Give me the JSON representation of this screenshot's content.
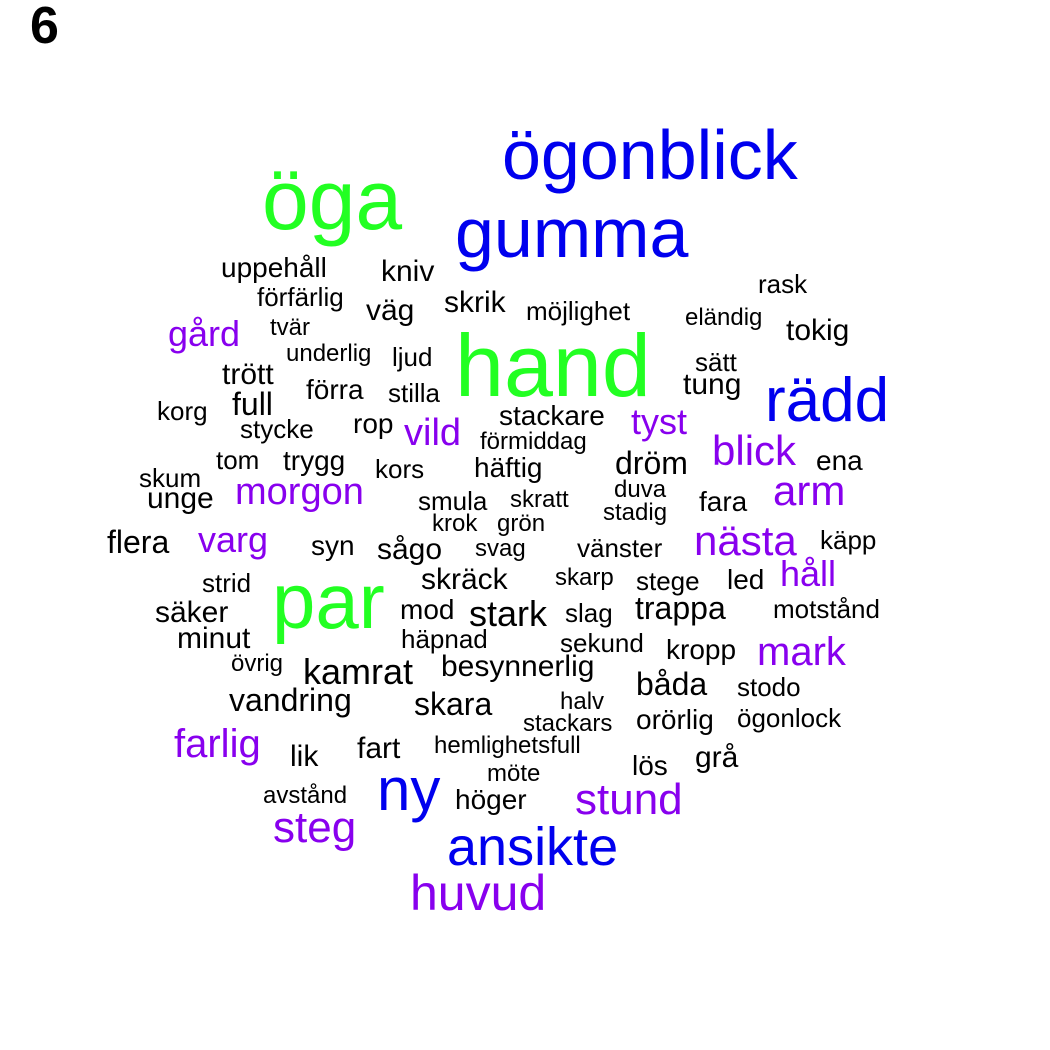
{
  "panel_label": "6",
  "palette": {
    "green": "#22ff22",
    "blue": "#0000ee",
    "purple": "#8800ee",
    "black": "#000000"
  },
  "words": [
    {
      "text": "öga",
      "color": "green"
    },
    {
      "text": "ögonblick",
      "color": "blue"
    },
    {
      "text": "gumma",
      "color": "blue"
    },
    {
      "text": "hand",
      "color": "green"
    },
    {
      "text": "rädd",
      "color": "blue"
    },
    {
      "text": "par",
      "color": "green"
    },
    {
      "text": "ny",
      "color": "blue"
    },
    {
      "text": "ansikte",
      "color": "blue"
    },
    {
      "text": "huvud",
      "color": "purple"
    },
    {
      "text": "steg",
      "color": "purple"
    },
    {
      "text": "stund",
      "color": "purple"
    },
    {
      "text": "morgon",
      "color": "purple"
    },
    {
      "text": "blick",
      "color": "purple"
    },
    {
      "text": "arm",
      "color": "purple"
    },
    {
      "text": "nästa",
      "color": "purple"
    },
    {
      "text": "farlig",
      "color": "purple"
    },
    {
      "text": "mark",
      "color": "purple"
    },
    {
      "text": "gård",
      "color": "purple"
    },
    {
      "text": "varg",
      "color": "purple"
    },
    {
      "text": "vild",
      "color": "purple"
    },
    {
      "text": "tyst",
      "color": "purple"
    },
    {
      "text": "håll",
      "color": "purple"
    },
    {
      "text": "kamrat",
      "color": "black"
    },
    {
      "text": "stark",
      "color": "black"
    },
    {
      "text": "vandring",
      "color": "black"
    },
    {
      "text": "skara",
      "color": "black"
    },
    {
      "text": "besynnerlig",
      "color": "black"
    },
    {
      "text": "trappa",
      "color": "black"
    },
    {
      "text": "båda",
      "color": "black"
    },
    {
      "text": "dröm",
      "color": "black"
    },
    {
      "text": "flera",
      "color": "black"
    },
    {
      "text": "unge",
      "color": "black"
    },
    {
      "text": "skräck",
      "color": "black"
    },
    {
      "text": "tung",
      "color": "black"
    },
    {
      "text": "väg",
      "color": "black"
    },
    {
      "text": "tokig",
      "color": "black"
    },
    {
      "text": "grå",
      "color": "black"
    },
    {
      "text": "kniv",
      "color": "black"
    },
    {
      "text": "skrik",
      "color": "black"
    },
    {
      "text": "lik",
      "color": "black"
    },
    {
      "text": "fart",
      "color": "black"
    },
    {
      "text": "höger",
      "color": "black"
    },
    {
      "text": "minut",
      "color": "black"
    },
    {
      "text": "säker",
      "color": "black"
    },
    {
      "text": "full",
      "color": "black"
    },
    {
      "text": "trött",
      "color": "black"
    },
    {
      "text": "häftig",
      "color": "black"
    },
    {
      "text": "stackare",
      "color": "black"
    },
    {
      "text": "uppehåll",
      "color": "black"
    },
    {
      "text": "rop",
      "color": "black"
    },
    {
      "text": "syn",
      "color": "black"
    },
    {
      "text": "sågo",
      "color": "black"
    },
    {
      "text": "orörlig",
      "color": "black"
    },
    {
      "text": "kropp",
      "color": "black"
    },
    {
      "text": "lös",
      "color": "black"
    },
    {
      "text": "led",
      "color": "black"
    },
    {
      "text": "mod",
      "color": "black"
    },
    {
      "text": "vänster",
      "color": "black"
    },
    {
      "text": "fara",
      "color": "black"
    },
    {
      "text": "förra",
      "color": "black"
    },
    {
      "text": "stilla",
      "color": "black"
    },
    {
      "text": "trygg",
      "color": "black"
    },
    {
      "text": "tom",
      "color": "black"
    },
    {
      "text": "kors",
      "color": "black"
    },
    {
      "text": "stycke",
      "color": "black"
    },
    {
      "text": "korg",
      "color": "black"
    },
    {
      "text": "skum",
      "color": "black"
    },
    {
      "text": "strid",
      "color": "black"
    },
    {
      "text": "förfärlig",
      "color": "black"
    },
    {
      "text": "tvär",
      "color": "black"
    },
    {
      "text": "underlig",
      "color": "black"
    },
    {
      "text": "ljud",
      "color": "black"
    },
    {
      "text": "möjlighet",
      "color": "black"
    },
    {
      "text": "eländig",
      "color": "black"
    },
    {
      "text": "rask",
      "color": "black"
    },
    {
      "text": "sätt",
      "color": "black"
    },
    {
      "text": "förmiddag",
      "color": "black"
    },
    {
      "text": "smula",
      "color": "black"
    },
    {
      "text": "skratt",
      "color": "black"
    },
    {
      "text": "duva",
      "color": "black"
    },
    {
      "text": "stadig",
      "color": "black"
    },
    {
      "text": "krok",
      "color": "black"
    },
    {
      "text": "grön",
      "color": "black"
    },
    {
      "text": "svag",
      "color": "black"
    },
    {
      "text": "skarp",
      "color": "black"
    },
    {
      "text": "stege",
      "color": "black"
    },
    {
      "text": "slag",
      "color": "black"
    },
    {
      "text": "sekund",
      "color": "black"
    },
    {
      "text": "häpnad",
      "color": "black"
    },
    {
      "text": "övrig",
      "color": "black"
    },
    {
      "text": "halv",
      "color": "black"
    },
    {
      "text": "stackars",
      "color": "black"
    },
    {
      "text": "hemlighetsfull",
      "color": "black"
    },
    {
      "text": "möte",
      "color": "black"
    },
    {
      "text": "avstånd",
      "color": "black"
    },
    {
      "text": "stodo",
      "color": "black"
    },
    {
      "text": "ögonlock",
      "color": "black"
    },
    {
      "text": "motstånd",
      "color": "black"
    },
    {
      "text": "käpp",
      "color": "black"
    },
    {
      "text": "ena",
      "color": "black"
    }
  ]
}
